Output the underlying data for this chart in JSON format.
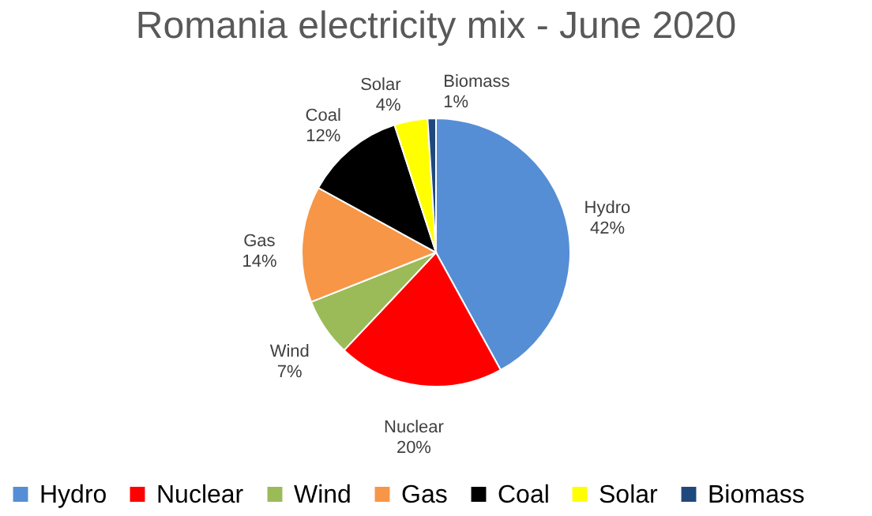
{
  "chart_data": {
    "type": "pie",
    "title": "Romania electricity mix - June 2020",
    "categories": [
      "Hydro",
      "Nuclear",
      "Wind",
      "Gas",
      "Coal",
      "Solar",
      "Biomass"
    ],
    "values": [
      42,
      20,
      7,
      14,
      12,
      4,
      1
    ],
    "value_labels": [
      "42%",
      "20%",
      "7%",
      "14%",
      "12%",
      "4%",
      "1%"
    ],
    "colors": [
      "#558ed5",
      "#ff0000",
      "#9bbb59",
      "#f79646",
      "#000000",
      "#ffff00",
      "#1f497d"
    ],
    "legend": "bottom"
  }
}
